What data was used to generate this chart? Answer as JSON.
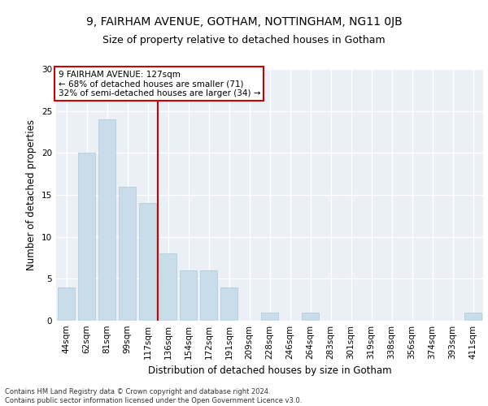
{
  "title1": "9, FAIRHAM AVENUE, GOTHAM, NOTTINGHAM, NG11 0JB",
  "title2": "Size of property relative to detached houses in Gotham",
  "xlabel": "Distribution of detached houses by size in Gotham",
  "ylabel": "Number of detached properties",
  "bar_labels": [
    "44sqm",
    "62sqm",
    "81sqm",
    "99sqm",
    "117sqm",
    "136sqm",
    "154sqm",
    "172sqm",
    "191sqm",
    "209sqm",
    "228sqm",
    "246sqm",
    "264sqm",
    "283sqm",
    "301sqm",
    "319sqm",
    "338sqm",
    "356sqm",
    "374sqm",
    "393sqm",
    "411sqm"
  ],
  "bar_values": [
    4,
    20,
    24,
    16,
    14,
    8,
    6,
    6,
    4,
    0,
    1,
    0,
    1,
    0,
    0,
    0,
    0,
    0,
    0,
    0,
    1
  ],
  "bar_color": "#c9dcea",
  "bar_edgecolor": "#aec8d8",
  "bar_width": 0.85,
  "vline_x": 4.5,
  "vline_color": "#cc0000",
  "annotation_line1": "9 FAIRHAM AVENUE: 127sqm",
  "annotation_line2": "← 68% of detached houses are smaller (71)",
  "annotation_line3": "32% of semi-detached houses are larger (34) →",
  "annotation_box_facecolor": "#ffffff",
  "annotation_box_edgecolor": "#cc0000",
  "ylim": [
    0,
    30
  ],
  "yticks": [
    0,
    5,
    10,
    15,
    20,
    25,
    30
  ],
  "footnote1": "Contains HM Land Registry data © Crown copyright and database right 2024.",
  "footnote2": "Contains public sector information licensed under the Open Government Licence v3.0.",
  "background_color": "#eaf0f6",
  "grid_color": "#ffffff",
  "title1_fontsize": 10,
  "title2_fontsize": 9,
  "xlabel_fontsize": 8.5,
  "ylabel_fontsize": 8.5,
  "tick_fontsize": 7.5,
  "annotation_fontsize": 7.5,
  "footnote_fontsize": 6
}
